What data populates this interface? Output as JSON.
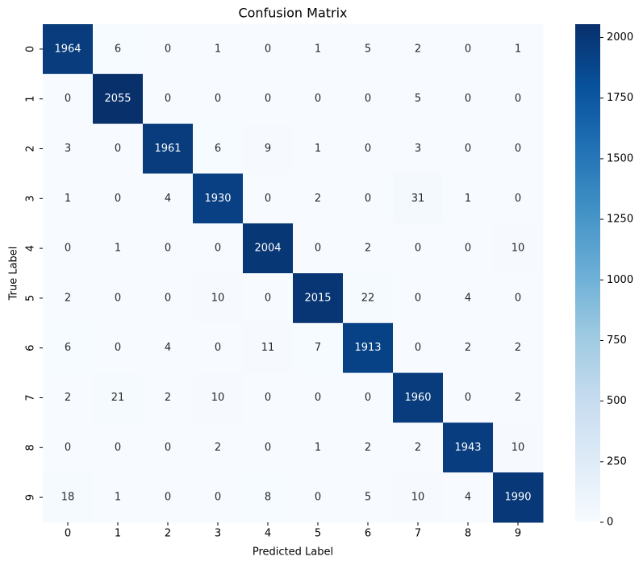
{
  "chart_data": {
    "type": "heatmap",
    "title": "Confusion Matrix",
    "xlabel": "Predicted Label",
    "ylabel": "True Label",
    "x_categories": [
      "0",
      "1",
      "2",
      "3",
      "4",
      "5",
      "6",
      "7",
      "8",
      "9"
    ],
    "y_categories": [
      "0",
      "1",
      "2",
      "3",
      "4",
      "5",
      "6",
      "7",
      "8",
      "9"
    ],
    "values": [
      [
        1964,
        6,
        0,
        1,
        0,
        1,
        5,
        2,
        0,
        1
      ],
      [
        0,
        2055,
        0,
        0,
        0,
        0,
        0,
        5,
        0,
        0
      ],
      [
        3,
        0,
        1961,
        6,
        9,
        1,
        0,
        3,
        0,
        0
      ],
      [
        1,
        0,
        4,
        1930,
        0,
        2,
        0,
        31,
        1,
        0
      ],
      [
        0,
        1,
        0,
        0,
        2004,
        0,
        2,
        0,
        0,
        10
      ],
      [
        2,
        0,
        0,
        10,
        0,
        2015,
        22,
        0,
        4,
        0
      ],
      [
        6,
        0,
        4,
        0,
        11,
        7,
        1913,
        0,
        2,
        2
      ],
      [
        2,
        21,
        2,
        10,
        0,
        0,
        0,
        1960,
        0,
        2
      ],
      [
        0,
        0,
        0,
        2,
        0,
        1,
        2,
        2,
        1943,
        10
      ],
      [
        18,
        1,
        0,
        0,
        8,
        0,
        5,
        10,
        4,
        1990
      ]
    ],
    "colormap": "Blues",
    "clim": [
      0,
      2055
    ],
    "cticks": [
      0,
      250,
      500,
      750,
      1000,
      1250,
      1500,
      1750,
      2000
    ]
  }
}
